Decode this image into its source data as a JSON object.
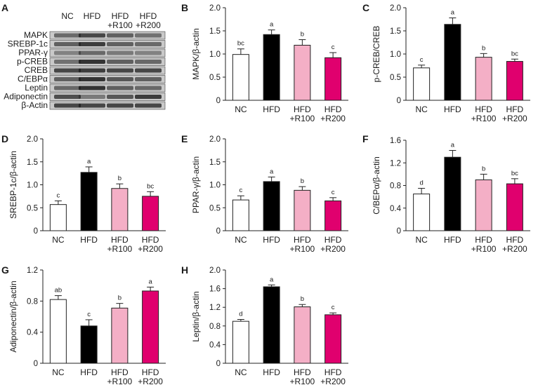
{
  "figure": {
    "blot": {
      "panel_label": "A",
      "headers": [
        [
          "NC"
        ],
        [
          "HFD"
        ],
        [
          "HFD",
          "+R100"
        ],
        [
          "HFD",
          "+R200"
        ]
      ],
      "rows": [
        "MAPK",
        "SREBP-1c",
        "PPAR-γ",
        "p-CREB",
        "CREB",
        "C/EBPα",
        "Leptin",
        "Adiponectin",
        "β-Actin"
      ]
    }
  },
  "colors": {
    "NC": "#ffffff",
    "HFD": "#000000",
    "HFD_R100": "#f4afc6",
    "HFD_R200": "#e0006e"
  },
  "chart_data": [
    {
      "panel": "B",
      "type": "bar",
      "categories": [
        [
          "NC"
        ],
        [
          "HFD"
        ],
        [
          "HFD",
          "+R100"
        ],
        [
          "HFD",
          "+R200"
        ]
      ],
      "values": [
        0.99,
        1.42,
        1.19,
        0.92
      ],
      "errors": [
        0.12,
        0.1,
        0.12,
        0.11
      ],
      "letters": [
        "bc",
        "a",
        "b",
        "c"
      ],
      "ylabel": "MAPK/β-actin",
      "ylim": [
        0,
        2.0
      ],
      "yticks": [
        "0",
        "0.5",
        "1.0",
        "1.5",
        "2.0"
      ]
    },
    {
      "panel": "C",
      "type": "bar",
      "categories": [
        [
          "NC"
        ],
        [
          "HFD"
        ],
        [
          "HFD",
          "+R100"
        ],
        [
          "HFD",
          "+R200"
        ]
      ],
      "values": [
        0.7,
        1.64,
        0.93,
        0.84
      ],
      "errors": [
        0.06,
        0.14,
        0.08,
        0.05
      ],
      "letters": [
        "c",
        "a",
        "b",
        "bc"
      ],
      "ylabel": "p-CREB/CREB",
      "ylim": [
        0,
        2.0
      ],
      "yticks": [
        "0",
        "0.5",
        "1.0",
        "1.5",
        "2.0"
      ]
    },
    {
      "panel": "D",
      "type": "bar",
      "categories": [
        [
          "NC"
        ],
        [
          "HFD"
        ],
        [
          "HFD",
          "+R100"
        ],
        [
          "HFD",
          "+R200"
        ]
      ],
      "values": [
        0.57,
        1.27,
        0.92,
        0.75
      ],
      "errors": [
        0.08,
        0.12,
        0.1,
        0.1
      ],
      "letters": [
        "c",
        "a",
        "b",
        "bc"
      ],
      "ylabel": "SREBP-1c/β-actin",
      "ylim": [
        0,
        2.0
      ],
      "yticks": [
        "0",
        "0.5",
        "1.0",
        "1.5",
        "2.0"
      ]
    },
    {
      "panel": "E",
      "type": "bar",
      "categories": [
        [
          "NC"
        ],
        [
          "HFD"
        ],
        [
          "HFD",
          "+R100"
        ],
        [
          "HFD",
          "+R200"
        ]
      ],
      "values": [
        0.67,
        1.07,
        0.88,
        0.65
      ],
      "errors": [
        0.09,
        0.1,
        0.08,
        0.07
      ],
      "letters": [
        "c",
        "a",
        "b",
        "c"
      ],
      "ylabel": "PPAR-γ/β-actin",
      "ylim": [
        0,
        2.0
      ],
      "yticks": [
        "0",
        "0.5",
        "1.0",
        "1.5",
        "2.0"
      ]
    },
    {
      "panel": "F",
      "type": "bar",
      "categories": [
        [
          "NC"
        ],
        [
          "HFD"
        ],
        [
          "HFD",
          "+R100"
        ],
        [
          "HFD",
          "+R200"
        ]
      ],
      "values": [
        0.65,
        1.3,
        0.9,
        0.83
      ],
      "errors": [
        0.1,
        0.12,
        0.1,
        0.09
      ],
      "letters": [
        "d",
        "a",
        "b",
        "bc"
      ],
      "ylabel": "C/BEPα/β-actin",
      "ylim": [
        0,
        1.6
      ],
      "yticks": [
        "0",
        "0.4",
        "0.8",
        "1.2",
        "1.6"
      ]
    },
    {
      "panel": "G",
      "type": "bar",
      "categories": [
        [
          "NC"
        ],
        [
          "HFD"
        ],
        [
          "HFD",
          "+R100"
        ],
        [
          "HFD",
          "+R200"
        ]
      ],
      "values": [
        0.82,
        0.48,
        0.71,
        0.93
      ],
      "errors": [
        0.05,
        0.08,
        0.06,
        0.05
      ],
      "letters": [
        "ab",
        "c",
        "b",
        "a"
      ],
      "ylabel": "Adiponectin/β-actin",
      "ylim": [
        0,
        1.2
      ],
      "yticks": [
        "0",
        "0.4",
        "0.8",
        "1.2"
      ]
    },
    {
      "panel": "H",
      "type": "bar",
      "categories": [
        [
          "NC"
        ],
        [
          "HFD"
        ],
        [
          "HFD",
          "+R100"
        ],
        [
          "HFD",
          "+R200"
        ]
      ],
      "values": [
        0.9,
        1.64,
        1.21,
        1.04
      ],
      "errors": [
        0.04,
        0.04,
        0.05,
        0.04
      ],
      "letters": [
        "d",
        "a",
        "b",
        "c"
      ],
      "ylabel": "Leptin/β-actin",
      "ylim": [
        0,
        2.0
      ],
      "yticks": [
        "0",
        "0.4",
        "0.8",
        "1.2",
        "1.6",
        "2.0"
      ]
    }
  ]
}
